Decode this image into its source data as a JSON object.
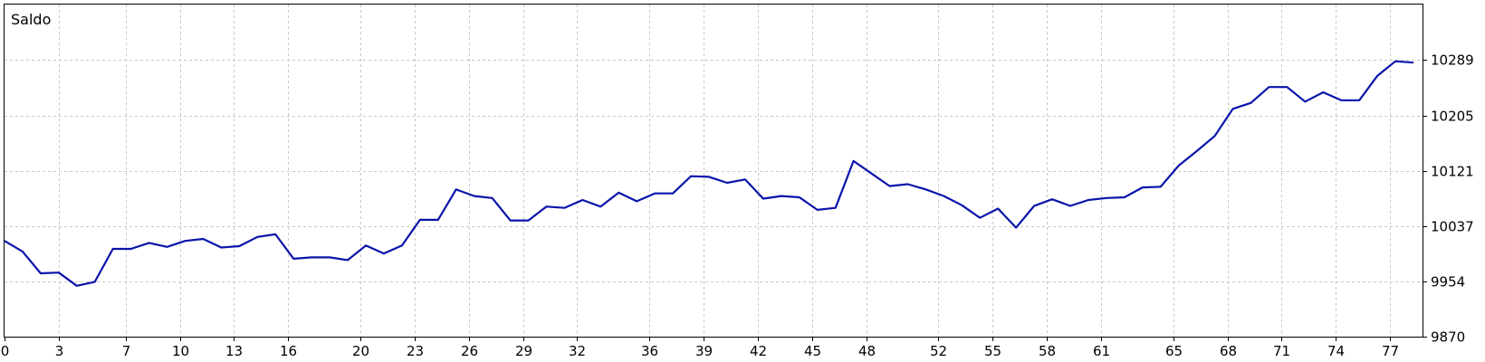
{
  "chart_data": {
    "type": "line",
    "title": "Saldo",
    "xlabel": "",
    "ylabel": "",
    "xlim": [
      0,
      78.5
    ],
    "ylim": [
      9870,
      10373
    ],
    "grid": true,
    "legend": "none",
    "x_ticks": [
      "0",
      "3",
      "7",
      "10",
      "13",
      "16",
      "20",
      "23",
      "26",
      "29",
      "32",
      "36",
      "39",
      "42",
      "45",
      "48",
      "52",
      "55",
      "58",
      "61",
      "65",
      "68",
      "71",
      "74",
      "77"
    ],
    "x_tick_values": [
      0,
      3,
      6.7,
      9.7,
      12.7,
      15.7,
      19.7,
      22.7,
      25.7,
      28.7,
      31.7,
      35.7,
      38.7,
      41.7,
      44.7,
      47.7,
      51.7,
      54.7,
      57.7,
      60.7,
      64.7,
      67.7,
      70.7,
      73.7,
      76.7
    ],
    "y_ticks": [
      "9870",
      "9954",
      "10037",
      "10121",
      "10205",
      "10289"
    ],
    "y_tick_values": [
      9870,
      9954,
      10037,
      10121,
      10205,
      10289
    ],
    "line_color": "#0a14aa",
    "series": [
      {
        "values": [
          10015,
          9999,
          9966,
          9967,
          9947,
          9953,
          10003,
          10003,
          10012,
          10006,
          10015,
          10018,
          10005,
          10007,
          10021,
          10025,
          9988,
          9990,
          9990,
          9986,
          10008,
          9996,
          10008,
          10047,
          10047,
          10093,
          10083,
          10080,
          10046,
          10046,
          10067,
          10065,
          10077,
          10067,
          10088,
          10075,
          10087,
          10087,
          10113,
          10112,
          10103,
          10108,
          10079,
          10083,
          10081,
          10062,
          10065,
          10136,
          10117,
          10098,
          10101,
          10093,
          10083,
          10069,
          10050,
          10064,
          10035,
          10068,
          10078,
          10068,
          10077,
          10080,
          10081,
          10096,
          10097,
          10129,
          10151,
          10174,
          10215,
          10224,
          10248,
          10248,
          10226,
          10240,
          10228,
          10228,
          10265,
          10287,
          10285
        ]
      }
    ]
  }
}
